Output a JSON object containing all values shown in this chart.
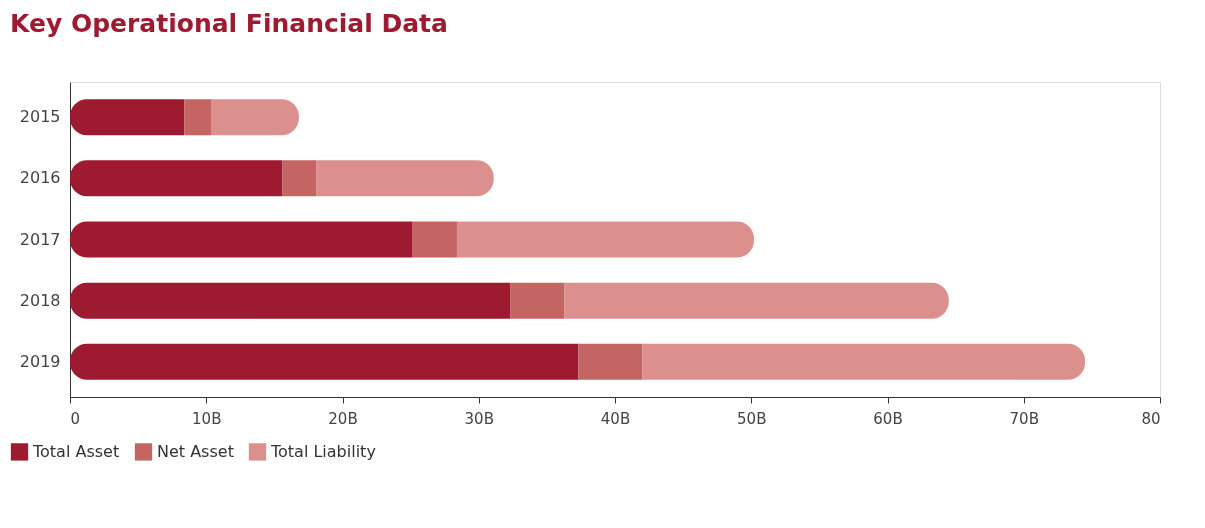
{
  "chart_data": {
    "type": "bar",
    "orientation": "horizontal",
    "stacked": true,
    "title": "Key Operational Financial Data",
    "categories": [
      "2015",
      "2016",
      "2017",
      "2018",
      "2019"
    ],
    "series": [
      {
        "name": "Total Asset",
        "color": "#9e1a30",
        "values": [
          8.4,
          15.6,
          25.1,
          32.3,
          37.3
        ]
      },
      {
        "name": "Net Asset",
        "color": "#c46563",
        "values": [
          2.0,
          2.5,
          3.3,
          4.0,
          4.7
        ]
      },
      {
        "name": "Total Liability",
        "color": "#dc908e",
        "values": [
          6.4,
          13.0,
          21.8,
          28.2,
          32.5
        ]
      }
    ],
    "xlim": [
      0,
      80
    ],
    "xticks": [
      0,
      {
        "value": 10,
        "label": "10B"
      },
      {
        "value": 20,
        "label": "20B"
      },
      {
        "value": 30,
        "label": "30B"
      },
      {
        "value": 40,
        "label": "40B"
      },
      {
        "value": 50,
        "label": "50B"
      },
      {
        "value": 60,
        "label": "60B"
      },
      {
        "value": 70,
        "label": "70B"
      },
      80
    ],
    "grid": false,
    "legend": "bottom left"
  }
}
